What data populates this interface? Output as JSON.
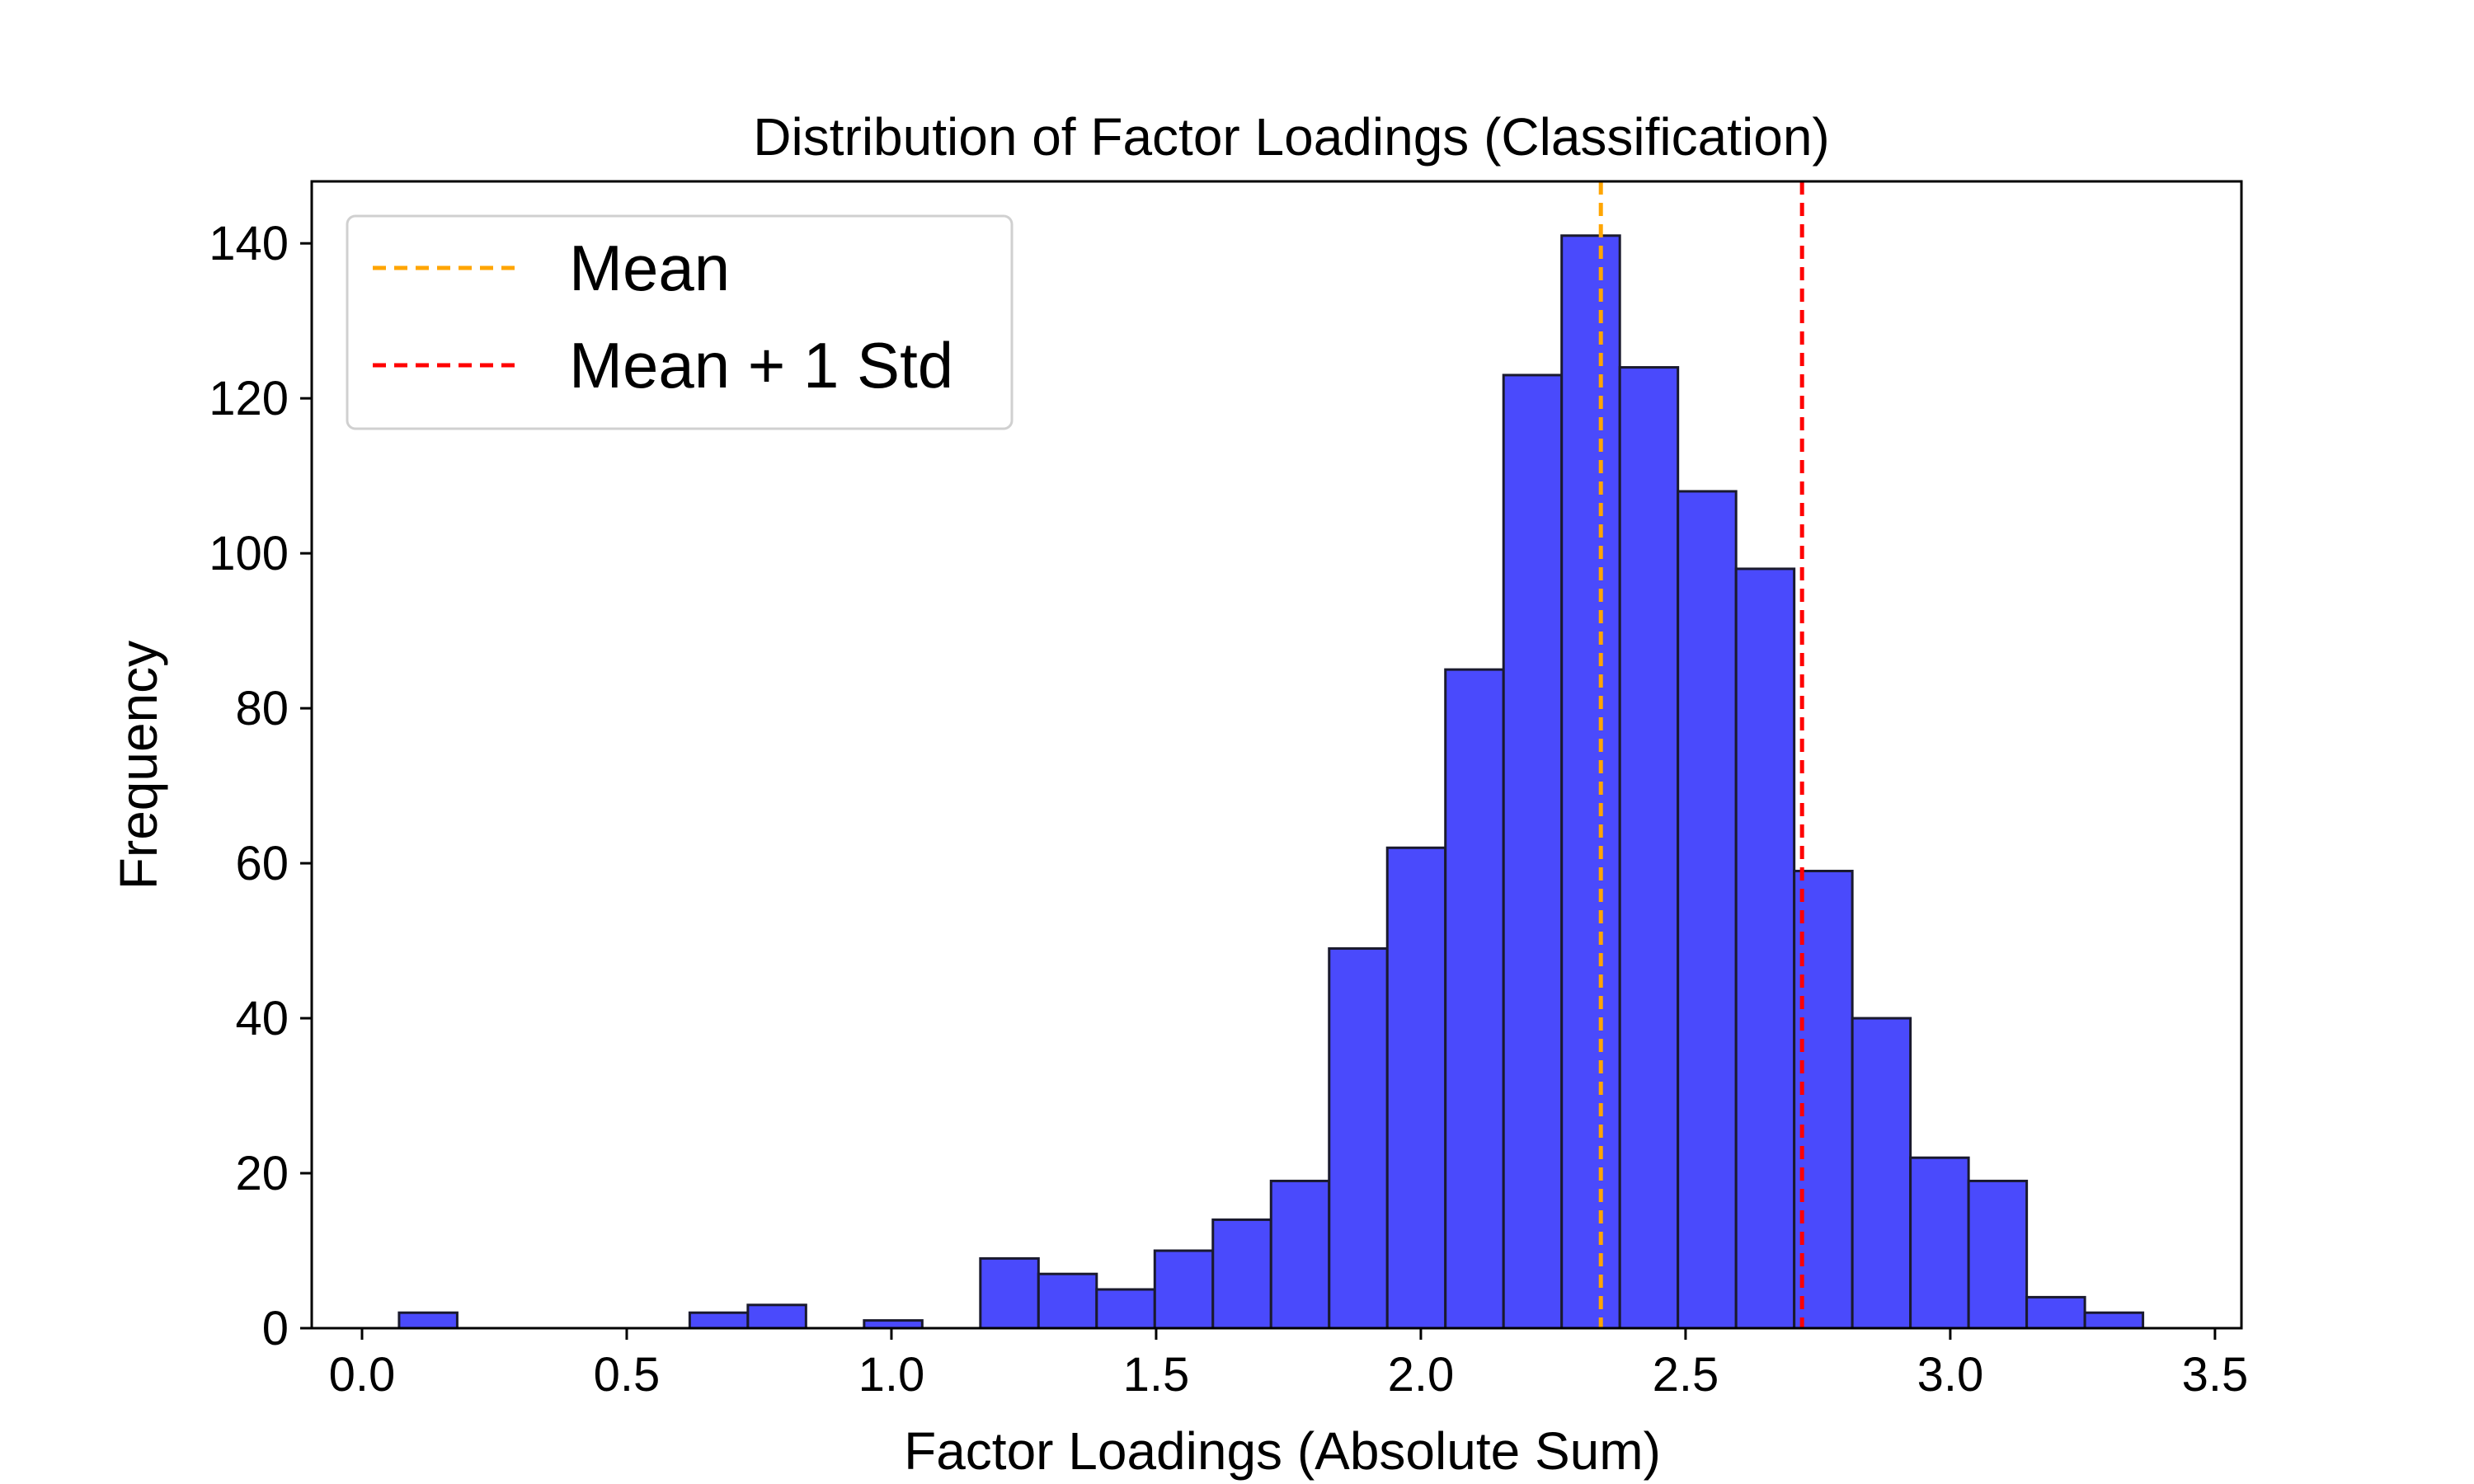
{
  "chart_data": {
    "type": "bar",
    "title": "Distribution of Factor Loadings (Classification)",
    "xlabel": "Factor Loadings (Absolute Sum)",
    "ylabel": "Frequency",
    "xlim": [
      -0.095,
      3.55
    ],
    "ylim": [
      0,
      148
    ],
    "xticks": [
      0.0,
      0.5,
      1.0,
      1.5,
      2.0,
      2.5,
      3.0,
      3.5
    ],
    "xtick_labels": [
      "0.0",
      "0.5",
      "1.0",
      "1.5",
      "2.0",
      "2.5",
      "3.0",
      "3.5"
    ],
    "yticks": [
      0,
      20,
      40,
      60,
      80,
      100,
      120,
      140
    ],
    "ytick_labels": [
      "0",
      "20",
      "40",
      "60",
      "80",
      "100",
      "120",
      "140"
    ],
    "bin_start": 0.07,
    "bin_width": 0.1098,
    "counts": [
      2,
      0,
      0,
      0,
      0,
      2,
      3,
      0,
      1,
      0,
      9,
      7,
      5,
      10,
      14,
      19,
      49,
      62,
      85,
      123,
      141,
      124,
      108,
      98,
      59,
      40,
      22,
      19,
      4,
      2
    ],
    "bar_color": "#4a4afc",
    "bar_edge_color": "#1a1a2e",
    "grid": false,
    "legend_position": "top-left",
    "lines": [
      {
        "name": "Mean",
        "x": 2.34,
        "color": "#ffa500",
        "style": "dashed"
      },
      {
        "name": "Mean + 1 Std",
        "x": 2.72,
        "color": "#ff0000",
        "style": "dashed"
      }
    ]
  }
}
